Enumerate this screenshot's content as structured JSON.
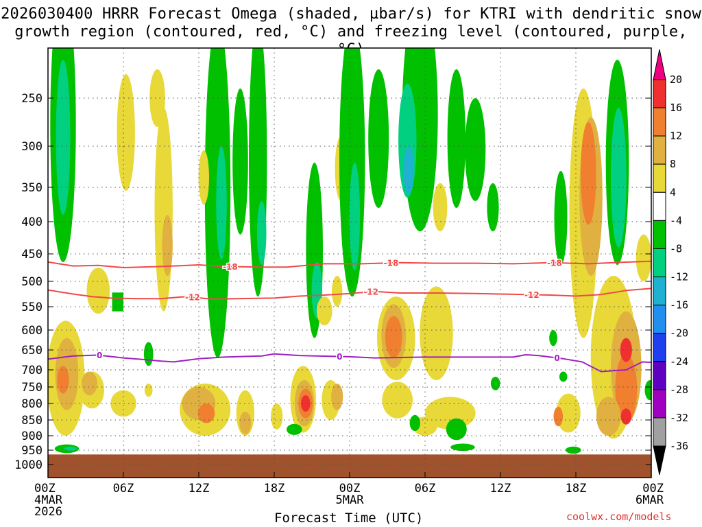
{
  "chart_data": {
    "type": "heatmap",
    "title_lines": [
      "2026030400 HRRR Forecast Omega (shaded, µbar/s) for KTRI with dendritic snow",
      "growth region (contoured, red, °C) and freezing level (contoured, purple, °C)"
    ],
    "xlabel": "Forecast Time (UTC)",
    "ylabel": "",
    "credit": "coolwx.com/models",
    "x_range_hours": [
      0,
      48
    ],
    "x_ticks": [
      {
        "hour": 0,
        "label": "00Z",
        "sub": [
          "4MAR",
          "2026"
        ]
      },
      {
        "hour": 6,
        "label": "06Z",
        "sub": []
      },
      {
        "hour": 12,
        "label": "12Z",
        "sub": []
      },
      {
        "hour": 18,
        "label": "18Z",
        "sub": []
      },
      {
        "hour": 24,
        "label": "00Z",
        "sub": [
          "5MAR"
        ]
      },
      {
        "hour": 30,
        "label": "06Z",
        "sub": []
      },
      {
        "hour": 36,
        "label": "12Z",
        "sub": []
      },
      {
        "hour": 42,
        "label": "18Z",
        "sub": []
      },
      {
        "hour": 48,
        "label": "00Z",
        "sub": [
          "6MAR"
        ]
      }
    ],
    "y_axis": {
      "unit": "hPa",
      "range": [
        1050,
        200
      ],
      "ticks": [
        250,
        300,
        350,
        400,
        450,
        500,
        550,
        600,
        650,
        700,
        750,
        800,
        850,
        900,
        950,
        1000
      ]
    },
    "grid": true,
    "colorbar": {
      "labels": [
        "20",
        "16",
        "12",
        "8",
        "4",
        "-4",
        "-8",
        "-12",
        "-16",
        "-20",
        "-24",
        "-28",
        "-32",
        "-36"
      ],
      "colors": [
        "#f00080",
        "#f03030",
        "#f08030",
        "#e0b040",
        "#e8d838",
        "#ffffff",
        "#00c000",
        "#00d080",
        "#20b0d0",
        "#2090f0",
        "#2040f0",
        "#6000c0",
        "#a000c0",
        "#a0a0a0",
        "#000000"
      ]
    },
    "ground_color": "#a0522d",
    "ground_pressure_hPa": 965,
    "omega_blobs": [
      {
        "t": 1.2,
        "p": 300,
        "dt": 1.6,
        "dp": 330,
        "v": -8
      },
      {
        "t": 1.2,
        "p": 300,
        "dt": 0.7,
        "dp": 180,
        "v": -12
      },
      {
        "t": 6.2,
        "p": 290,
        "dt": 1.0,
        "dp": 130,
        "v": 4
      },
      {
        "t": 8.7,
        "p": 250,
        "dt": 0.8,
        "dp": 60,
        "v": 4
      },
      {
        "t": 9.2,
        "p": 410,
        "dt": 1.0,
        "dp": 300,
        "v": 4
      },
      {
        "t": 9.5,
        "p": 440,
        "dt": 0.4,
        "dp": 100,
        "v": 8
      },
      {
        "t": 4.0,
        "p": 520,
        "dt": 1.4,
        "dp": 90,
        "v": 4
      },
      {
        "t": 13.5,
        "p": 420,
        "dt": 1.6,
        "dp": 500,
        "v": -8
      },
      {
        "t": 13.8,
        "p": 380,
        "dt": 0.4,
        "dp": 160,
        "v": -12
      },
      {
        "t": 15.3,
        "p": 330,
        "dt": 0.8,
        "dp": 180,
        "v": -8
      },
      {
        "t": 16.7,
        "p": 350,
        "dt": 1.0,
        "dp": 360,
        "v": -8
      },
      {
        "t": 17.0,
        "p": 420,
        "dt": 0.3,
        "dp": 100,
        "v": -12
      },
      {
        "t": 12.4,
        "p": 340,
        "dt": 0.4,
        "dp": 70,
        "v": 4
      },
      {
        "t": 21.2,
        "p": 470,
        "dt": 0.9,
        "dp": 300,
        "v": -8
      },
      {
        "t": 21.4,
        "p": 520,
        "dt": 0.4,
        "dp": 110,
        "v": -12
      },
      {
        "t": 22.0,
        "p": 560,
        "dt": 0.8,
        "dp": 60,
        "v": 4
      },
      {
        "t": 23.0,
        "p": 520,
        "dt": 0.4,
        "dp": 60,
        "v": 4
      },
      {
        "t": 23.3,
        "p": 330,
        "dt": 0.5,
        "dp": 80,
        "v": 4
      },
      {
        "t": 24.2,
        "p": 350,
        "dt": 1.6,
        "dp": 360,
        "v": -8
      },
      {
        "t": 24.4,
        "p": 400,
        "dt": 0.4,
        "dp": 160,
        "v": -12
      },
      {
        "t": 26.3,
        "p": 300,
        "dt": 1.2,
        "dp": 160,
        "v": -8
      },
      {
        "t": 29.6,
        "p": 280,
        "dt": 2.4,
        "dp": 270,
        "v": -8
      },
      {
        "t": 28.6,
        "p": 300,
        "dt": 1.0,
        "dp": 130,
        "v": -12
      },
      {
        "t": 28.7,
        "p": 330,
        "dt": 0.4,
        "dp": 60,
        "v": -16
      },
      {
        "t": 31.2,
        "p": 380,
        "dt": 0.7,
        "dp": 70,
        "v": 4
      },
      {
        "t": 32.5,
        "p": 300,
        "dt": 1.0,
        "dp": 160,
        "v": -8
      },
      {
        "t": 34.0,
        "p": 310,
        "dt": 1.2,
        "dp": 120,
        "v": -8
      },
      {
        "t": 35.4,
        "p": 380,
        "dt": 0.5,
        "dp": 70,
        "v": -8
      },
      {
        "t": 40.8,
        "p": 400,
        "dt": 0.6,
        "dp": 140,
        "v": -8
      },
      {
        "t": 42.6,
        "p": 430,
        "dt": 1.8,
        "dp": 380,
        "v": 4
      },
      {
        "t": 43.2,
        "p": 380,
        "dt": 1.4,
        "dp": 220,
        "v": 8
      },
      {
        "t": 43.0,
        "p": 340,
        "dt": 0.8,
        "dp": 130,
        "v": 12
      },
      {
        "t": 45.3,
        "p": 340,
        "dt": 1.4,
        "dp": 260,
        "v": -8
      },
      {
        "t": 45.4,
        "p": 350,
        "dt": 0.8,
        "dp": 180,
        "v": -12
      },
      {
        "t": 47.4,
        "p": 460,
        "dt": 0.8,
        "dp": 80,
        "v": 4
      },
      {
        "t": 45.0,
        "p": 700,
        "dt": 3.2,
        "dp": 420,
        "v": 4
      },
      {
        "t": 46.0,
        "p": 710,
        "dt": 2.0,
        "dp": 300,
        "v": 8
      },
      {
        "t": 46.0,
        "p": 760,
        "dt": 1.3,
        "dp": 200,
        "v": 12
      },
      {
        "t": 46.0,
        "p": 650,
        "dt": 0.5,
        "dp": 60,
        "v": 16
      },
      {
        "t": 46.0,
        "p": 840,
        "dt": 0.4,
        "dp": 50,
        "v": 16
      },
      {
        "t": 1.4,
        "p": 740,
        "dt": 2.6,
        "dp": 320,
        "v": 4
      },
      {
        "t": 1.5,
        "p": 720,
        "dt": 1.4,
        "dp": 200,
        "v": 8
      },
      {
        "t": 1.2,
        "p": 730,
        "dt": 0.5,
        "dp": 80,
        "v": 12
      },
      {
        "t": 3.5,
        "p": 760,
        "dt": 1.5,
        "dp": 110,
        "v": 4
      },
      {
        "t": 3.3,
        "p": 740,
        "dt": 0.8,
        "dp": 70,
        "v": 8
      },
      {
        "t": 6.0,
        "p": 800,
        "dt": 1.6,
        "dp": 80,
        "v": 4
      },
      {
        "t": 12.5,
        "p": 820,
        "dt": 3.6,
        "dp": 160,
        "v": 4
      },
      {
        "t": 12.0,
        "p": 800,
        "dt": 2.2,
        "dp": 100,
        "v": 8
      },
      {
        "t": 12.6,
        "p": 830,
        "dt": 0.9,
        "dp": 60,
        "v": 12
      },
      {
        "t": 15.7,
        "p": 830,
        "dt": 1.0,
        "dp": 140,
        "v": 4
      },
      {
        "t": 15.7,
        "p": 860,
        "dt": 0.5,
        "dp": 70,
        "v": 8
      },
      {
        "t": 18.2,
        "p": 840,
        "dt": 0.5,
        "dp": 80,
        "v": 4
      },
      {
        "t": 20.3,
        "p": 790,
        "dt": 1.6,
        "dp": 200,
        "v": 4
      },
      {
        "t": 20.4,
        "p": 800,
        "dt": 1.1,
        "dp": 140,
        "v": 8
      },
      {
        "t": 20.5,
        "p": 800,
        "dt": 0.7,
        "dp": 90,
        "v": 12
      },
      {
        "t": 20.5,
        "p": 800,
        "dt": 0.3,
        "dp": 50,
        "v": 16
      },
      {
        "t": 22.5,
        "p": 790,
        "dt": 1.0,
        "dp": 120,
        "v": 4
      },
      {
        "t": 23.0,
        "p": 780,
        "dt": 0.5,
        "dp": 80,
        "v": 8
      },
      {
        "t": 27.7,
        "p": 630,
        "dt": 2.6,
        "dp": 200,
        "v": 4
      },
      {
        "t": 27.5,
        "p": 620,
        "dt": 1.5,
        "dp": 150,
        "v": 8
      },
      {
        "t": 27.5,
        "p": 620,
        "dt": 0.9,
        "dp": 100,
        "v": 12
      },
      {
        "t": 30.9,
        "p": 620,
        "dt": 2.2,
        "dp": 220,
        "v": 4
      },
      {
        "t": 32.0,
        "p": 830,
        "dt": 3.6,
        "dp": 100,
        "v": 4
      },
      {
        "t": 30.0,
        "p": 870,
        "dt": 1.5,
        "dp": 60,
        "v": 4
      },
      {
        "t": 27.8,
        "p": 790,
        "dt": 2.0,
        "dp": 110,
        "v": 4
      },
      {
        "t": 41.4,
        "p": 830,
        "dt": 1.5,
        "dp": 120,
        "v": 4
      },
      {
        "t": 40.6,
        "p": 840,
        "dt": 0.3,
        "dp": 60,
        "v": 12
      },
      {
        "t": 44.6,
        "p": 840,
        "dt": 1.5,
        "dp": 120,
        "v": 8
      },
      {
        "t": 1.5,
        "p": 945,
        "dt": 1.5,
        "dp": 30,
        "v": -8
      },
      {
        "t": 1.8,
        "p": 945,
        "dt": 0.6,
        "dp": 15,
        "v": -12
      },
      {
        "t": 19.6,
        "p": 880,
        "dt": 0.8,
        "dp": 35,
        "v": -8
      },
      {
        "t": 29.2,
        "p": 860,
        "dt": 0.4,
        "dp": 50,
        "v": -8
      },
      {
        "t": 32.5,
        "p": 880,
        "dt": 1.2,
        "dp": 70,
        "v": -8
      },
      {
        "t": 33.0,
        "p": 940,
        "dt": 1.5,
        "dp": 25,
        "v": -8
      },
      {
        "t": 41.8,
        "p": 950,
        "dt": 0.8,
        "dp": 25,
        "v": -8
      },
      {
        "t": 35.6,
        "p": 740,
        "dt": 0.3,
        "dp": 40,
        "v": -8
      },
      {
        "t": 40.2,
        "p": 620,
        "dt": 0.2,
        "dp": 40,
        "v": -8
      },
      {
        "t": 41.0,
        "p": 720,
        "dt": 0.2,
        "dp": 30,
        "v": -8
      },
      {
        "t": 8.0,
        "p": 660,
        "dt": 0.3,
        "dp": 60,
        "v": -8
      },
      {
        "t": 8.0,
        "p": 760,
        "dt": 0.2,
        "dp": 40,
        "v": 4
      },
      {
        "t": 47.9,
        "p": 760,
        "dt": 0.4,
        "dp": 60,
        "v": -8
      }
    ],
    "omega_rects": [
      {
        "t0": 5.1,
        "t1": 6.0,
        "p0": 522,
        "p1": 560,
        "v": -8
      }
    ],
    "contours": [
      {
        "name": "-18",
        "color": "#f04848",
        "width": 2,
        "points": [
          [
            -0.5,
            463
          ],
          [
            2,
            472
          ],
          [
            4,
            471
          ],
          [
            6,
            475
          ],
          [
            9,
            473
          ],
          [
            12,
            470
          ],
          [
            14,
            473
          ],
          [
            17,
            474
          ],
          [
            19,
            474
          ],
          [
            22,
            468
          ],
          [
            25,
            468
          ],
          [
            28,
            466
          ],
          [
            31,
            467
          ],
          [
            34,
            467
          ],
          [
            37,
            468
          ],
          [
            40,
            466
          ],
          [
            43,
            468
          ],
          [
            46,
            465
          ],
          [
            48.5,
            463
          ]
        ],
        "labels": [
          {
            "t": 14.5
          },
          {
            "t": 27.3
          },
          {
            "t": 40.3
          }
        ]
      },
      {
        "name": "-12",
        "color": "#f04848",
        "width": 2,
        "points": [
          [
            -0.5,
            515
          ],
          [
            2,
            525
          ],
          [
            3.5,
            530
          ],
          [
            5,
            533
          ],
          [
            7,
            534
          ],
          [
            9,
            534
          ],
          [
            11,
            530
          ],
          [
            13,
            535
          ],
          [
            15,
            534
          ],
          [
            18,
            533
          ],
          [
            20,
            529
          ],
          [
            22,
            527
          ],
          [
            24,
            524
          ],
          [
            26,
            520
          ],
          [
            28,
            523
          ],
          [
            31,
            523
          ],
          [
            34,
            524
          ],
          [
            36,
            525
          ],
          [
            38,
            526
          ],
          [
            40,
            527
          ],
          [
            42,
            529
          ],
          [
            44,
            526
          ],
          [
            46,
            518
          ],
          [
            48.5,
            513
          ]
        ],
        "labels": [
          {
            "t": 11.5
          },
          {
            "t": 25.7
          },
          {
            "t": 38.5
          }
        ]
      },
      {
        "name": "0",
        "color": "#a020c0",
        "width": 2,
        "points": [
          [
            -0.5,
            675
          ],
          [
            2,
            665
          ],
          [
            4,
            663
          ],
          [
            6,
            670
          ],
          [
            8,
            675
          ],
          [
            9,
            678
          ],
          [
            10,
            680
          ],
          [
            12,
            672
          ],
          [
            14,
            668
          ],
          [
            17,
            665
          ],
          [
            18,
            660
          ],
          [
            20,
            664
          ],
          [
            24,
            667
          ],
          [
            26,
            670
          ],
          [
            30,
            668
          ],
          [
            34,
            668
          ],
          [
            37,
            668
          ],
          [
            38,
            662
          ],
          [
            39,
            664
          ],
          [
            41,
            672
          ],
          [
            42.5,
            680
          ],
          [
            44,
            705
          ],
          [
            46,
            700
          ],
          [
            47.3,
            680
          ],
          [
            48.5,
            682
          ]
        ],
        "labels": [
          {
            "t": 4.1
          },
          {
            "t": 23.2
          },
          {
            "t": 40.5
          }
        ]
      }
    ]
  }
}
